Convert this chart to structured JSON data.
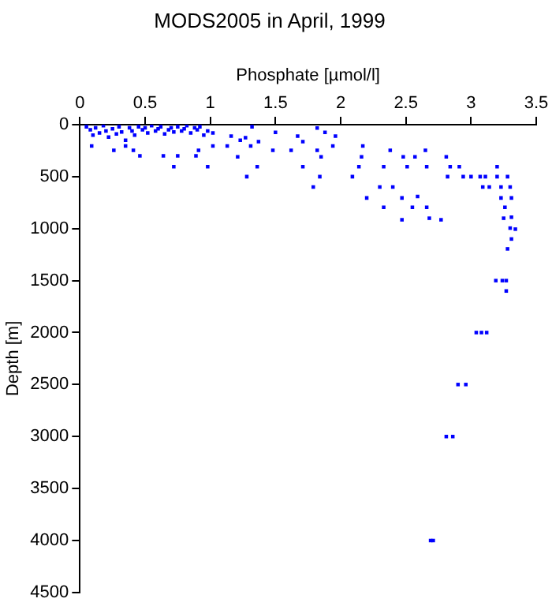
{
  "chart_data": {
    "type": "scatter",
    "title": "MODS2005 in April, 1999",
    "xlabel": "Phosphate [µmol/l]",
    "ylabel": "Depth [m]",
    "xlim": [
      0,
      3.5
    ],
    "xticks": [
      0,
      0.5,
      1,
      1.5,
      2,
      2.5,
      3,
      3.5
    ],
    "ylim": [
      4500,
      0
    ],
    "yticks": [
      0,
      500,
      1000,
      1500,
      2000,
      2500,
      3000,
      3500,
      4000,
      4500
    ],
    "grid": false,
    "marker": "square",
    "legend": false,
    "series": [
      {
        "color": "#0000ff",
        "x": [
          0.05,
          0.08,
          0.1,
          0.12,
          0.15,
          0.18,
          0.2,
          0.22,
          0.25,
          0.28,
          0.3,
          0.32,
          0.35,
          0.38,
          0.4,
          0.42,
          0.45,
          0.48,
          0.5,
          0.52,
          0.55,
          0.58,
          0.6,
          0.62,
          0.65,
          0.68,
          0.7,
          0.72,
          0.75,
          0.78,
          0.8,
          0.82,
          0.85,
          0.88,
          0.9,
          0.92,
          0.95,
          0.98,
          1.02,
          0.09,
          0.26,
          0.35,
          0.41,
          0.46,
          0.64,
          0.72,
          0.75,
          0.89,
          0.91,
          0.98,
          1.02,
          1.13,
          1.16,
          1.21,
          1.23,
          1.27,
          1.28,
          1.31,
          1.32,
          1.36,
          1.37,
          1.48,
          1.5,
          1.62,
          1.67,
          1.71,
          1.71,
          1.79,
          1.82,
          1.82,
          1.84,
          1.85,
          1.88,
          1.94,
          1.96,
          2.09,
          2.14,
          2.17,
          2.16,
          2.2,
          2.3,
          2.33,
          2.33,
          2.38,
          2.4,
          2.47,
          2.47,
          2.48,
          2.51,
          2.55,
          2.57,
          2.59,
          2.65,
          2.66,
          2.66,
          2.68,
          2.77,
          2.81,
          2.82,
          2.84,
          2.91,
          2.94,
          3.0,
          3.07,
          3.11,
          3.09,
          3.14,
          3.2,
          3.2,
          3.23,
          3.23,
          3.28,
          3.3,
          3.26,
          3.31,
          3.31,
          3.25,
          3.3,
          3.34,
          3.31,
          3.28,
          3.19,
          3.24,
          3.27,
          3.27,
          3.04,
          3.08,
          3.12,
          2.9,
          2.96,
          2.81,
          2.86,
          2.69,
          2.71
        ],
        "values": [
          20,
          50,
          100,
          30,
          80,
          10,
          60,
          120,
          40,
          90,
          20,
          70,
          150,
          30,
          60,
          100,
          20,
          50,
          30,
          80,
          10,
          60,
          40,
          20,
          90,
          50,
          30,
          70,
          20,
          60,
          40,
          10,
          80,
          30,
          50,
          20,
          100,
          60,
          80,
          205,
          247,
          205,
          247,
          300,
          300,
          405,
          300,
          300,
          247,
          405,
          205,
          205,
          110,
          310,
          150,
          126,
          500,
          205,
          20,
          405,
          163,
          247,
          74,
          247,
          110,
          405,
          163,
          600,
          32,
          247,
          500,
          310,
          74,
          205,
          110,
          500,
          405,
          205,
          310,
          705,
          600,
          405,
          795,
          247,
          600,
          705,
          915,
          310,
          405,
          795,
          310,
          690,
          247,
          405,
          795,
          900,
          915,
          310,
          500,
          405,
          405,
          500,
          500,
          500,
          500,
          600,
          600,
          405,
          500,
          600,
          705,
          500,
          600,
          795,
          705,
          890,
          900,
          995,
          1005,
          1100,
          1195,
          1500,
          1500,
          1500,
          1600,
          2000,
          2000,
          2000,
          2500,
          2500,
          3000,
          3000,
          4000,
          4000
        ]
      }
    ]
  }
}
